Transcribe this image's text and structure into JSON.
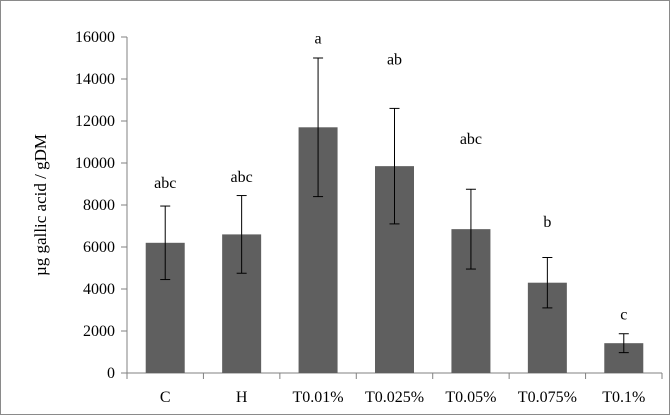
{
  "chart_data": {
    "type": "bar",
    "categories": [
      "C",
      "H",
      "T0.01%",
      "T0.025%",
      "T0.05%",
      "T0.075%",
      "T0.1%"
    ],
    "series": [
      {
        "values": [
          6200,
          6600,
          11700,
          9850,
          6850,
          4300,
          1420
        ],
        "errors": [
          1750,
          1850,
          3300,
          2750,
          1900,
          1200,
          450
        ]
      }
    ],
    "significance_labels": [
      "abc",
      "abc",
      "a",
      "ab",
      "abc",
      "b",
      "c"
    ],
    "significance_label_y": [
      8800,
      9100,
      15700,
      14700,
      10900,
      6950,
      2550
    ],
    "yticks": [
      0,
      2000,
      4000,
      6000,
      8000,
      10000,
      12000,
      14000,
      16000
    ],
    "ytick_labels": [
      "0",
      "2000",
      "4000",
      "6000",
      "8000",
      "10000",
      "12000",
      "14000",
      "16000"
    ],
    "ylim": [
      0,
      16000
    ],
    "title": "",
    "xlabel": "",
    "ylabel": "µg gallic acid / gDM",
    "grid": false,
    "legend": "none",
    "colors": {
      "bar": "#5f5f5f",
      "error_bar": "#000000",
      "axis": "#808080"
    }
  }
}
